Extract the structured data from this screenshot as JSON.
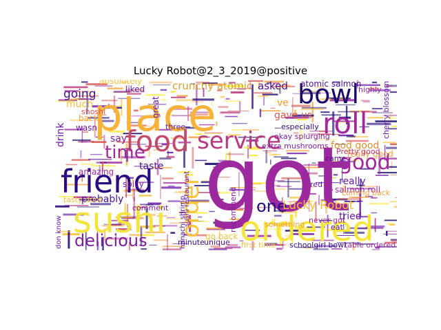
{
  "title": "Lucky Robot@2_3_2019@positive",
  "palette": [
    "#fde725",
    "#f6bf3a",
    "#f4a040",
    "#d7564f",
    "#b73779",
    "#9c2a9e",
    "#6a1aa6",
    "#2a0a80",
    "#1a0a6a"
  ],
  "words": [
    {
      "text": "got",
      "color": "#9c2a9e",
      "rotate": 0
    },
    {
      "text": "place",
      "color": "#f6b23b",
      "rotate": 0
    },
    {
      "text": "friend",
      "color": "#2a0a80",
      "rotate": 0
    },
    {
      "text": "sushi",
      "color": "#f3e33d",
      "rotate": 0
    },
    {
      "text": "ordered",
      "color": "#f5e53b",
      "rotate": 0
    },
    {
      "text": "food",
      "color": "#c24a6b",
      "rotate": 0
    },
    {
      "text": "service",
      "color": "#b63a82",
      "rotate": 0
    },
    {
      "text": "bowl",
      "color": "#1a0a6a",
      "rotate": 0
    },
    {
      "text": "roll",
      "color": "#a1289a",
      "rotate": 0
    },
    {
      "text": "order",
      "color": "#f8c23a",
      "rotate": -90
    },
    {
      "text": "good",
      "color": "#a0289b",
      "rotate": 0
    },
    {
      "text": "time",
      "color": "#a0289b",
      "rotate": 0
    },
    {
      "text": "delicious",
      "color": "#7d1fa0",
      "rotate": 0
    },
    {
      "text": "one",
      "color": "#2a0a80",
      "rotate": 0
    },
    {
      "text": "Lucky Robot",
      "color": "#f6bf3a",
      "rotate": 0
    },
    {
      "text": "crunchy atomic",
      "color": "#d5a030",
      "rotate": 0
    },
    {
      "text": "asked",
      "color": "#4a0f90",
      "rotate": 0
    },
    {
      "text": "atomic salmon",
      "color": "#4a0f90",
      "rotate": 0
    },
    {
      "text": "gave us",
      "color": "#d7564f",
      "rotate": 0
    },
    {
      "text": "food good",
      "color": "#d6902f",
      "rotate": 0
    },
    {
      "text": "going",
      "color": "#4a0f90",
      "rotate": 0
    },
    {
      "text": "drink",
      "color": "#6a1aa6",
      "rotate": -90
    },
    {
      "text": "much",
      "color": "#f6bf3a",
      "rotate": 0
    },
    {
      "text": "say",
      "color": "#7d1fa0",
      "rotate": 0
    },
    {
      "text": "taste",
      "color": "#4a0f90",
      "rotate": 0
    },
    {
      "text": "probably",
      "color": "#4a0f90",
      "rotate": 0
    },
    {
      "text": "really",
      "color": "#6a1aa6",
      "rotate": 0
    },
    {
      "text": "salmon roll",
      "color": "#9c2a9e",
      "rotate": 0
    },
    {
      "text": "tried",
      "color": "#6a1aa6",
      "rotate": 0
    },
    {
      "text": "ve",
      "color": "#f4a040",
      "rotate": 0
    },
    {
      "text": "great",
      "color": "#6a1aa6",
      "rotate": -90
    },
    {
      "text": "back",
      "color": "#f4a040",
      "rotate": 0
    },
    {
      "text": "wasn",
      "color": "#6a1aa6",
      "rotate": 0
    },
    {
      "text": "liked",
      "color": "#6a1aa6",
      "rotate": 0
    },
    {
      "text": "spicy",
      "color": "#7d1fa0",
      "rotate": 0
    },
    {
      "text": "amazing",
      "color": "#9c2a9e",
      "rotate": 0
    },
    {
      "text": "three",
      "color": "#6a1aa6",
      "rotate": 0
    },
    {
      "text": "really good",
      "color": "#f4a040",
      "rotate": 0
    },
    {
      "text": "Pretty good",
      "color": "#b73779",
      "rotate": 0
    },
    {
      "text": "came",
      "color": "#4a0f90",
      "rotate": 0
    },
    {
      "text": "especially",
      "color": "#2a0a80",
      "rotate": 0
    },
    {
      "text": "okay splurging",
      "color": "#7d1fa0",
      "rotate": 0
    },
    {
      "text": "extra mushrooms",
      "color": "#7d1fa0",
      "rotate": 0
    },
    {
      "text": "recommend",
      "color": "#7d1fa0",
      "rotate": -90
    },
    {
      "text": "sushi restaurant",
      "color": "#6a1aa6",
      "rotate": -90
    },
    {
      "text": "go back",
      "color": "#f6bf3a",
      "rotate": 0
    },
    {
      "text": "unique",
      "color": "#4a0f90",
      "rotate": 0
    },
    {
      "text": "minute",
      "color": "#2a0a80",
      "rotate": 0
    },
    {
      "text": "first time",
      "color": "#f6bf3a",
      "rotate": 0
    },
    {
      "text": "schoolgirl bowl",
      "color": "#2a0a80",
      "rotate": 0
    },
    {
      "text": "table ordered",
      "color": "#9c2a9e",
      "rotate": 0
    },
    {
      "text": "never got",
      "color": "#9c2a9e",
      "rotate": 0
    },
    {
      "text": "eat",
      "color": "#4a0f90",
      "rotate": 0
    },
    {
      "text": "coming back",
      "color": "#f4a040",
      "rotate": 0
    },
    {
      "text": "comment",
      "color": "#7d1fa0",
      "rotate": 0
    },
    {
      "text": "hanachi shrimp",
      "color": "#4a0f90",
      "rotate": -90
    },
    {
      "text": "don know",
      "color": "#6a1aa6",
      "rotate": -90
    },
    {
      "text": "cherry blossom",
      "color": "#6a1aa6",
      "rotate": -90
    },
    {
      "text": "something",
      "color": "#f4a040",
      "rotate": 0
    },
    {
      "text": "absolutely",
      "color": "#f6bf3a",
      "rotate": 0
    },
    {
      "text": "red",
      "color": "#6a1aa6",
      "rotate": 0
    },
    {
      "text": "tasty dont",
      "color": "#f6bf3a",
      "rotate": 0
    },
    {
      "text": "highly",
      "color": "#9c2a9e",
      "rotate": 0
    },
    {
      "text": "shoshi",
      "color": "#d7564f",
      "rotate": 0
    }
  ]
}
